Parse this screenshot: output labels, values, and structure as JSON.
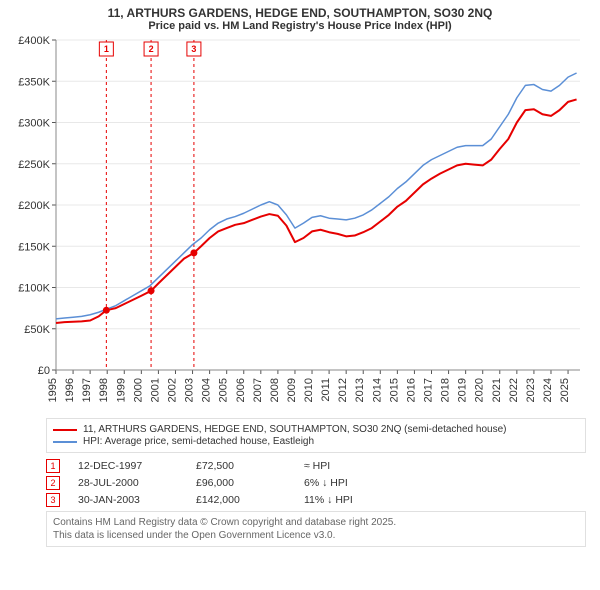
{
  "title_line1": "11, ARTHURS GARDENS, HEDGE END, SOUTHAMPTON, SO30 2NQ",
  "title_line2": "Price paid vs. HM Land Registry's House Price Index (HPI)",
  "chart": {
    "type": "line",
    "background_color": "#ffffff",
    "grid_color": "#e8e8e8",
    "axis_color": "#888888",
    "tick_color": "#555555",
    "xlim": [
      1995,
      2025.7
    ],
    "ylim": [
      0,
      400000
    ],
    "ytick_step": 50000,
    "yticks": [
      "£0",
      "£50K",
      "£100K",
      "£150K",
      "£200K",
      "£250K",
      "£300K",
      "£350K",
      "£400K"
    ],
    "xticks": [
      1995,
      1996,
      1997,
      1998,
      1999,
      2000,
      2001,
      2002,
      2003,
      2004,
      2005,
      2006,
      2007,
      2008,
      2009,
      2010,
      2011,
      2012,
      2013,
      2014,
      2015,
      2016,
      2017,
      2018,
      2019,
      2020,
      2021,
      2022,
      2023,
      2024,
      2025
    ],
    "series": [
      {
        "name": "11, ARTHURS GARDENS, HEDGE END, SOUTHAMPTON, SO30 2NQ (semi-detached house)",
        "color": "#e60000",
        "line_width": 2,
        "xy": [
          [
            1995,
            57000
          ],
          [
            1995.5,
            58000
          ],
          [
            1996,
            58500
          ],
          [
            1996.5,
            59000
          ],
          [
            1997,
            60000
          ],
          [
            1997.5,
            65000
          ],
          [
            1997.95,
            72500
          ],
          [
            1998.5,
            75000
          ],
          [
            1999,
            80000
          ],
          [
            1999.5,
            85000
          ],
          [
            2000,
            90000
          ],
          [
            2000.57,
            96000
          ],
          [
            2001,
            105000
          ],
          [
            2001.5,
            115000
          ],
          [
            2002,
            125000
          ],
          [
            2002.5,
            135000
          ],
          [
            2003.08,
            142000
          ],
          [
            2003.5,
            150000
          ],
          [
            2004,
            160000
          ],
          [
            2004.5,
            168000
          ],
          [
            2005,
            172000
          ],
          [
            2005.5,
            176000
          ],
          [
            2006,
            178000
          ],
          [
            2006.5,
            182000
          ],
          [
            2007,
            186000
          ],
          [
            2007.5,
            189000
          ],
          [
            2008,
            187000
          ],
          [
            2008.5,
            175000
          ],
          [
            2009,
            155000
          ],
          [
            2009.5,
            160000
          ],
          [
            2010,
            168000
          ],
          [
            2010.5,
            170000
          ],
          [
            2011,
            167000
          ],
          [
            2011.5,
            165000
          ],
          [
            2012,
            162000
          ],
          [
            2012.5,
            163000
          ],
          [
            2013,
            167000
          ],
          [
            2013.5,
            172000
          ],
          [
            2014,
            180000
          ],
          [
            2014.5,
            188000
          ],
          [
            2015,
            198000
          ],
          [
            2015.5,
            205000
          ],
          [
            2016,
            215000
          ],
          [
            2016.5,
            225000
          ],
          [
            2017,
            232000
          ],
          [
            2017.5,
            238000
          ],
          [
            2018,
            243000
          ],
          [
            2018.5,
            248000
          ],
          [
            2019,
            250000
          ],
          [
            2019.5,
            249000
          ],
          [
            2020,
            248000
          ],
          [
            2020.5,
            255000
          ],
          [
            2021,
            268000
          ],
          [
            2021.5,
            280000
          ],
          [
            2022,
            300000
          ],
          [
            2022.5,
            315000
          ],
          [
            2023,
            316000
          ],
          [
            2023.5,
            310000
          ],
          [
            2024,
            308000
          ],
          [
            2024.5,
            315000
          ],
          [
            2025,
            325000
          ],
          [
            2025.5,
            328000
          ]
        ]
      },
      {
        "name": "HPI: Average price, semi-detached house, Eastleigh",
        "color": "#5b8fd6",
        "line_width": 1.5,
        "xy": [
          [
            1995,
            62000
          ],
          [
            1995.5,
            63000
          ],
          [
            1996,
            64000
          ],
          [
            1996.5,
            65000
          ],
          [
            1997,
            67000
          ],
          [
            1997.5,
            70000
          ],
          [
            1998,
            74000
          ],
          [
            1998.5,
            78000
          ],
          [
            1999,
            84000
          ],
          [
            1999.5,
            90000
          ],
          [
            2000,
            96000
          ],
          [
            2000.5,
            102000
          ],
          [
            2001,
            112000
          ],
          [
            2001.5,
            122000
          ],
          [
            2002,
            132000
          ],
          [
            2002.5,
            142000
          ],
          [
            2003,
            152000
          ],
          [
            2003.5,
            160000
          ],
          [
            2004,
            170000
          ],
          [
            2004.5,
            178000
          ],
          [
            2005,
            183000
          ],
          [
            2005.5,
            186000
          ],
          [
            2006,
            190000
          ],
          [
            2006.5,
            195000
          ],
          [
            2007,
            200000
          ],
          [
            2007.5,
            204000
          ],
          [
            2008,
            200000
          ],
          [
            2008.5,
            188000
          ],
          [
            2009,
            172000
          ],
          [
            2009.5,
            178000
          ],
          [
            2010,
            185000
          ],
          [
            2010.5,
            187000
          ],
          [
            2011,
            184000
          ],
          [
            2011.5,
            183000
          ],
          [
            2012,
            182000
          ],
          [
            2012.5,
            184000
          ],
          [
            2013,
            188000
          ],
          [
            2013.5,
            194000
          ],
          [
            2014,
            202000
          ],
          [
            2014.5,
            210000
          ],
          [
            2015,
            220000
          ],
          [
            2015.5,
            228000
          ],
          [
            2016,
            238000
          ],
          [
            2016.5,
            248000
          ],
          [
            2017,
            255000
          ],
          [
            2017.5,
            260000
          ],
          [
            2018,
            265000
          ],
          [
            2018.5,
            270000
          ],
          [
            2019,
            272000
          ],
          [
            2019.5,
            272000
          ],
          [
            2020,
            272000
          ],
          [
            2020.5,
            280000
          ],
          [
            2021,
            295000
          ],
          [
            2021.5,
            310000
          ],
          [
            2022,
            330000
          ],
          [
            2022.5,
            345000
          ],
          [
            2023,
            346000
          ],
          [
            2023.5,
            340000
          ],
          [
            2024,
            338000
          ],
          [
            2024.5,
            345000
          ],
          [
            2025,
            355000
          ],
          [
            2025.5,
            360000
          ]
        ]
      }
    ],
    "markers": [
      {
        "n": "1",
        "x": 1997.95,
        "y": 72500
      },
      {
        "n": "2",
        "x": 2000.57,
        "y": 96000
      },
      {
        "n": "3",
        "x": 2003.08,
        "y": 142000
      }
    ],
    "marker_line_color": "#e60000",
    "marker_line_dash": "3,3",
    "marker_dot_color": "#e60000",
    "marker_box_border": "#e60000",
    "label_fontsize": 11
  },
  "legend": {
    "items": [
      {
        "label": "11, ARTHURS GARDENS, HEDGE END, SOUTHAMPTON, SO30 2NQ (semi-detached house)",
        "color": "#e60000"
      },
      {
        "label": "HPI: Average price, semi-detached house, Eastleigh",
        "color": "#5b8fd6"
      }
    ]
  },
  "transactions": [
    {
      "n": "1",
      "date": "12-DEC-1997",
      "price": "£72,500",
      "diff": "≈ HPI"
    },
    {
      "n": "2",
      "date": "28-JUL-2000",
      "price": "£96,000",
      "diff": "6% ↓ HPI"
    },
    {
      "n": "3",
      "date": "30-JAN-2003",
      "price": "£142,000",
      "diff": "11% ↓ HPI"
    }
  ],
  "footnote_line1": "Contains HM Land Registry data © Crown copyright and database right 2025.",
  "footnote_line2": "This data is licensed under the Open Government Licence v3.0."
}
